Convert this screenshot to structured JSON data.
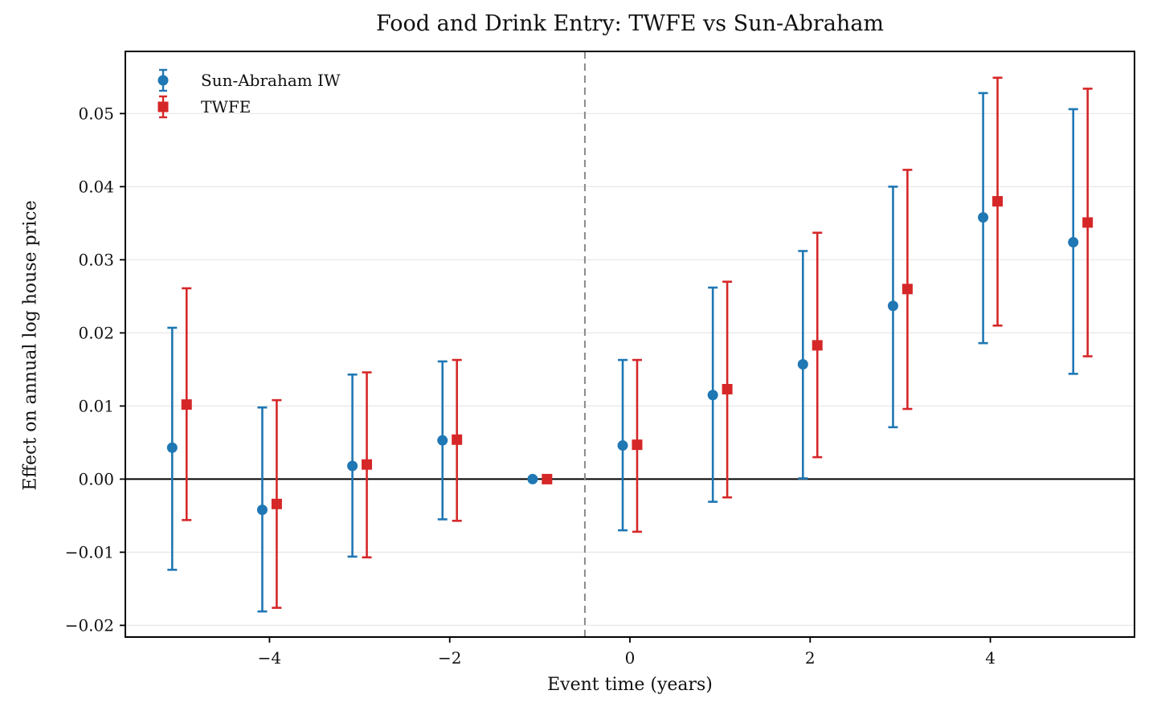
{
  "chart_data": {
    "type": "errorbar-scatter",
    "title": "Food and Drink Entry: TWFE vs Sun-Abraham",
    "xlabel": "Event time (years)",
    "ylabel": "Effect on annual log house price",
    "x": [
      -5,
      -4,
      -3,
      -2,
      -1,
      0,
      1,
      2,
      3,
      4,
      5
    ],
    "series": [
      {
        "name": "Sun-Abraham IW",
        "marker": "circle",
        "color": "#1f77b4",
        "offset": -0.08,
        "values": [
          0.0043,
          -0.0042,
          0.0018,
          0.0053,
          0.0,
          0.0046,
          0.0115,
          0.0157,
          0.0237,
          0.0358,
          0.0324
        ],
        "ci_low": [
          -0.0124,
          -0.0181,
          -0.0106,
          -0.0055,
          null,
          -0.007,
          -0.0031,
          0.0001,
          0.0071,
          0.0186,
          0.0144
        ],
        "ci_high": [
          0.0207,
          0.0098,
          0.0143,
          0.0161,
          null,
          0.0163,
          0.0262,
          0.0312,
          0.04,
          0.0528,
          0.0506
        ]
      },
      {
        "name": "TWFE",
        "marker": "square",
        "color": "#d62728",
        "offset": 0.08,
        "values": [
          0.0102,
          -0.0034,
          0.002,
          0.0054,
          0.0,
          0.0047,
          0.0123,
          0.0183,
          0.026,
          0.038,
          0.0351
        ],
        "ci_low": [
          -0.0056,
          -0.0176,
          -0.0107,
          -0.0057,
          null,
          -0.0072,
          -0.0025,
          0.003,
          0.0096,
          0.021,
          0.0168
        ],
        "ci_high": [
          0.0261,
          0.0108,
          0.0146,
          0.0163,
          null,
          0.0163,
          0.027,
          0.0337,
          0.0423,
          0.0549,
          0.0534
        ]
      }
    ],
    "xlim": [
      -5.6,
      5.6
    ],
    "ylim": [
      -0.0216,
      0.0585
    ],
    "xticks": {
      "values": [
        -4,
        -2,
        0,
        2,
        4
      ],
      "labels": [
        "−4",
        "−2",
        "0",
        "2",
        "4"
      ]
    },
    "yticks": {
      "values": [
        0.05,
        0.04,
        0.03,
        0.02,
        0.01,
        0.0,
        -0.01,
        -0.02
      ],
      "labels": [
        "0.05",
        "0.04",
        "0.03",
        "0.02",
        "0.01",
        "0.00",
        "−0.01",
        "−0.02"
      ]
    },
    "grid": "horizontal",
    "grid_color": "#e8e8e8",
    "reference_lines": {
      "hline_y": 0,
      "hline_color": "#000000",
      "vline_x": -0.5,
      "vline_style": "dashed",
      "vline_color": "#8a8a8a"
    },
    "legend": {
      "position": "upper-left",
      "items": [
        {
          "label": "Sun-Abraham IW"
        },
        {
          "label": "TWFE"
        }
      ]
    }
  }
}
